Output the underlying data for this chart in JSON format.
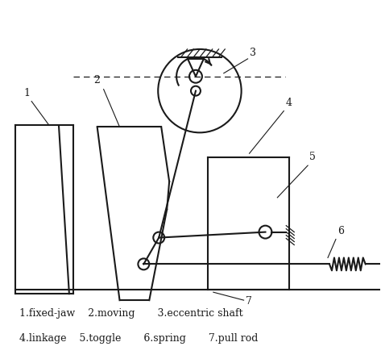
{
  "bg_color": "#ffffff",
  "line_color": "#1a1a1a",
  "caption_lines": [
    "1.fixed-jaw    2.moving       3.eccentric shaft",
    "4.linkage    5.toggle       6.spring       7.pull rod"
  ],
  "figsize": [
    4.73,
    4.45
  ],
  "dpi": 100
}
